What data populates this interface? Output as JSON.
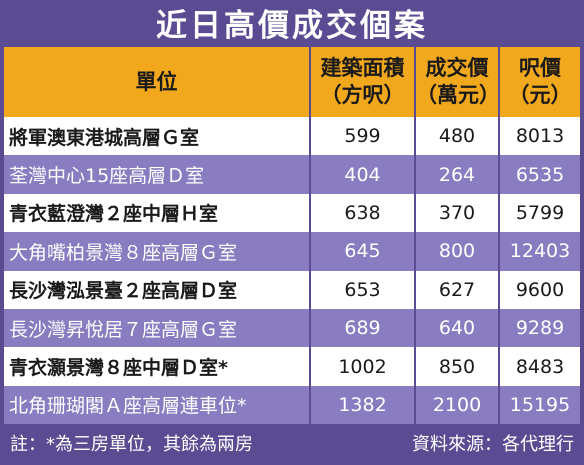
{
  "title": "近日高價成交個案",
  "header": {
    "unit": "單位",
    "area_line1": "建築面積",
    "area_line2": "（方呎）",
    "price_line1": "成交價",
    "price_line2": "（萬元）",
    "psf_line1": "呎價",
    "psf_line2": "（元）"
  },
  "rows": [
    {
      "unit": "將軍澳東港城高層Ｇ室",
      "area": "599",
      "price": "480",
      "psf": "8013"
    },
    {
      "unit": "荃灣中心15座高層Ｄ室",
      "area": "404",
      "price": "264",
      "psf": "6535"
    },
    {
      "unit": "青衣藍澄灣２座中層Ｈ室",
      "area": "638",
      "price": "370",
      "psf": "5799"
    },
    {
      "unit": "大角嘴柏景灣８座高層Ｇ室",
      "area": "645",
      "price": "800",
      "psf": "12403"
    },
    {
      "unit": "長沙灣泓景臺２座高層Ｄ室",
      "area": "653",
      "price": "627",
      "psf": "9600"
    },
    {
      "unit": "長沙灣昇悅居７座高層Ｇ室",
      "area": "689",
      "price": "640",
      "psf": "9289"
    },
    {
      "unit": "青衣灝景灣８座中層Ｄ室*",
      "area": "1002",
      "price": "850",
      "psf": "8483"
    },
    {
      "unit": "北角珊瑚閣Ａ座高層連車位*",
      "area": "1382",
      "price": "2100",
      "psf": "15195"
    }
  ],
  "footer": {
    "note": "註：*為三房單位，其餘為兩房",
    "source": "資料來源：各代理行"
  },
  "colors": {
    "frame": "#5a4b92",
    "header": "#f2a81d",
    "alt_row": "#8a7cc0",
    "row": "#ffffff"
  }
}
